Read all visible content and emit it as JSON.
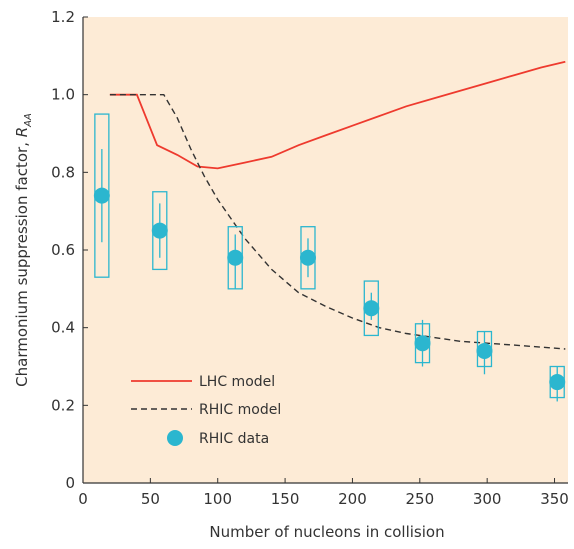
{
  "chart_data": {
    "type": "line",
    "xlabel": "Number of nucleons in collision",
    "ylabel": "Charmonium suppression factor, ",
    "ylabel_symbol": "R",
    "ylabel_subscript": "AA",
    "xlim": [
      0,
      360
    ],
    "ylim": [
      0,
      1.2
    ],
    "x_ticks": [
      "0",
      "50",
      "100",
      "150",
      "200",
      "250",
      "300",
      "350"
    ],
    "y_ticks": [
      "0",
      "0.2",
      "0.4",
      "0.6",
      "0.8",
      "1.0",
      "1.2"
    ],
    "grid": false,
    "legend_position": "bottom-left",
    "colors": {
      "background": "#fdebd6",
      "lhc": "#ee3a2e",
      "rhic_model": "#333333",
      "rhic_data": "#2bb6cf",
      "axis": "#333333"
    },
    "series": [
      {
        "name": "LHC model",
        "style": "solid",
        "x": [
          20,
          40,
          55,
          70,
          85,
          100,
          120,
          140,
          160,
          180,
          200,
          220,
          240,
          260,
          280,
          300,
          320,
          340,
          358
        ],
        "y": [
          1.0,
          1.0,
          0.87,
          0.845,
          0.815,
          0.81,
          0.825,
          0.84,
          0.87,
          0.895,
          0.92,
          0.945,
          0.97,
          0.99,
          1.01,
          1.03,
          1.05,
          1.07,
          1.085
        ]
      },
      {
        "name": "RHIC model",
        "style": "dashed",
        "x": [
          20,
          40,
          60,
          70,
          80,
          90,
          100,
          110,
          120,
          140,
          160,
          180,
          200,
          220,
          240,
          260,
          280,
          300,
          320,
          340,
          358
        ],
        "y": [
          1.0,
          1.0,
          1.0,
          0.94,
          0.86,
          0.79,
          0.73,
          0.68,
          0.63,
          0.55,
          0.49,
          0.455,
          0.425,
          0.4,
          0.385,
          0.375,
          0.365,
          0.36,
          0.355,
          0.35,
          0.345
        ]
      },
      {
        "name": "RHIC data",
        "style": "markers",
        "points": [
          {
            "x": 14,
            "y": 0.74,
            "stat": [
              0.62,
              0.86
            ],
            "sys": [
              0.53,
              0.95
            ]
          },
          {
            "x": 57,
            "y": 0.65,
            "stat": [
              0.58,
              0.72
            ],
            "sys": [
              0.55,
              0.75
            ]
          },
          {
            "x": 113,
            "y": 0.58,
            "stat": [
              0.5,
              0.64
            ],
            "sys": [
              0.5,
              0.66
            ]
          },
          {
            "x": 167,
            "y": 0.58,
            "stat": [
              0.53,
              0.63
            ],
            "sys": [
              0.5,
              0.66
            ]
          },
          {
            "x": 214,
            "y": 0.45,
            "stat": [
              0.42,
              0.49
            ],
            "sys": [
              0.38,
              0.52
            ]
          },
          {
            "x": 252,
            "y": 0.36,
            "stat": [
              0.3,
              0.42
            ],
            "sys": [
              0.31,
              0.41
            ]
          },
          {
            "x": 298,
            "y": 0.34,
            "stat": [
              0.28,
              0.39
            ],
            "sys": [
              0.3,
              0.39
            ]
          },
          {
            "x": 352,
            "y": 0.26,
            "stat": [
              0.21,
              0.3
            ],
            "sys": [
              0.22,
              0.3
            ]
          }
        ]
      }
    ]
  }
}
